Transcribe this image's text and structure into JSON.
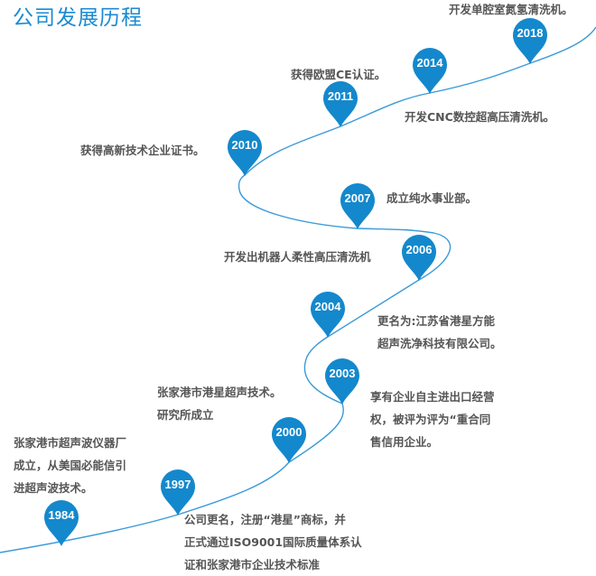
{
  "title": "公司发展历程",
  "colors": {
    "accent": "#1488cc",
    "line": "#3a9ad9",
    "text": "#555555"
  },
  "milestones": [
    {
      "year": "1984",
      "lines": [
        "张家港市超声波仪器厂",
        "成立，从美国必能信引",
        "进超声波技术。"
      ]
    },
    {
      "year": "1997",
      "lines": [
        "公司更名，注册“港星”商标，并",
        "正式通过ISO9001国际质量体系认",
        "证和张家港市企业技术标准"
      ]
    },
    {
      "year": "2000",
      "lines": [
        "张家港市港星超声技术。",
        "研究所成立"
      ]
    },
    {
      "year": "2003",
      "lines": [
        "享有企业自主进出口经营",
        "权，被评为评为“重合同",
        "售信用企业。"
      ]
    },
    {
      "year": "2004",
      "lines": [
        "更名为:江苏省港星方能",
        "超声洗净科技有限公司。"
      ]
    },
    {
      "year": "2006",
      "lines": [
        "开发出机器人柔性高压清洗机"
      ]
    },
    {
      "year": "2007",
      "lines": [
        "成立纯水事业部。"
      ]
    },
    {
      "year": "2010",
      "lines": [
        "获得高新技术企业证书。"
      ]
    },
    {
      "year": "2011",
      "lines": [
        "获得欧盟CE认证。"
      ]
    },
    {
      "year": "2014",
      "lines": [
        "开发CNC数控超高压清洗机。"
      ]
    },
    {
      "year": "2018",
      "lines": [
        "开发单腔室氮氢清洗机。"
      ]
    }
  ]
}
